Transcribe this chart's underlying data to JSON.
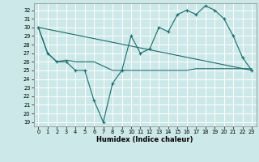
{
  "title": "",
  "xlabel": "Humidex (Indice chaleur)",
  "bg_color": "#cce8e8",
  "grid_color": "#ffffff",
  "line_color": "#1a6b6b",
  "xlim": [
    -0.5,
    23.5
  ],
  "ylim": [
    18.5,
    32.8
  ],
  "yticks": [
    19,
    20,
    21,
    22,
    23,
    24,
    25,
    26,
    27,
    28,
    29,
    30,
    31,
    32
  ],
  "xticks": [
    0,
    1,
    2,
    3,
    4,
    5,
    6,
    7,
    8,
    9,
    10,
    11,
    12,
    13,
    14,
    15,
    16,
    17,
    18,
    19,
    20,
    21,
    22,
    23
  ],
  "line1_x": [
    0,
    1,
    2,
    3,
    4,
    5,
    6,
    7,
    8,
    9,
    10,
    11,
    12,
    13,
    14,
    15,
    16,
    17,
    18,
    19,
    20,
    21,
    22,
    23
  ],
  "line1_y": [
    30,
    27,
    26,
    26,
    25,
    25,
    21.5,
    19,
    23.5,
    25,
    29,
    27,
    27.5,
    30,
    29.5,
    31.5,
    32,
    31.5,
    32.5,
    32,
    31,
    29,
    26.5,
    25
  ],
  "line2_x": [
    0,
    23
  ],
  "line2_y": [
    30,
    25
  ],
  "line3_x": [
    0,
    1,
    2,
    3,
    4,
    5,
    6,
    7,
    8,
    9,
    10,
    11,
    12,
    13,
    14,
    15,
    16,
    17,
    18,
    19,
    20,
    21,
    22,
    23
  ],
  "line3_y": [
    30,
    27,
    26,
    26.2,
    26,
    26,
    26,
    25.5,
    25,
    25,
    25,
    25,
    25,
    25,
    25,
    25,
    25,
    25.2,
    25.2,
    25.2,
    25.2,
    25.2,
    25.2,
    25.2
  ]
}
